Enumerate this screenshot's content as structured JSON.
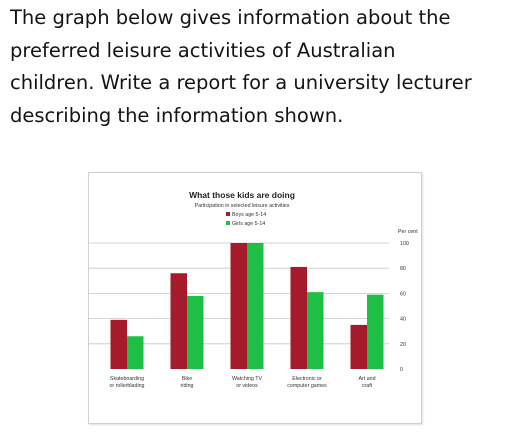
{
  "prompt": {
    "lines": [
      "The graph below gives information about the",
      "preferred leisure activities of Australian",
      "children. Write a report for a university lecturer",
      "describing the information shown."
    ]
  },
  "colors": {
    "boys": "#a61b2b",
    "girls": "#1fbf45",
    "grid": "#c8c8c8"
  },
  "chart_data": {
    "type": "bar",
    "title": "What those kids are doing",
    "subtitle": "Participation in selected leisure activities",
    "ylabel": "Per cent",
    "ylim": [
      0,
      100
    ],
    "yticks": [
      0,
      20,
      40,
      60,
      80,
      100
    ],
    "grid": true,
    "legend_position": "top-center",
    "categories": [
      [
        "Skateboarding",
        "or rollerblading"
      ],
      [
        "Bike",
        "riding"
      ],
      [
        "Watching TV",
        "or videos"
      ],
      [
        "Electronic or",
        "computer games"
      ],
      [
        "Art and",
        "craft"
      ]
    ],
    "series": [
      {
        "name": "Boys age 5-14",
        "values": [
          39,
          76,
          100,
          81,
          35
        ]
      },
      {
        "name": "Girls age 5-14",
        "values": [
          26,
          58,
          100,
          61,
          59
        ]
      }
    ]
  }
}
